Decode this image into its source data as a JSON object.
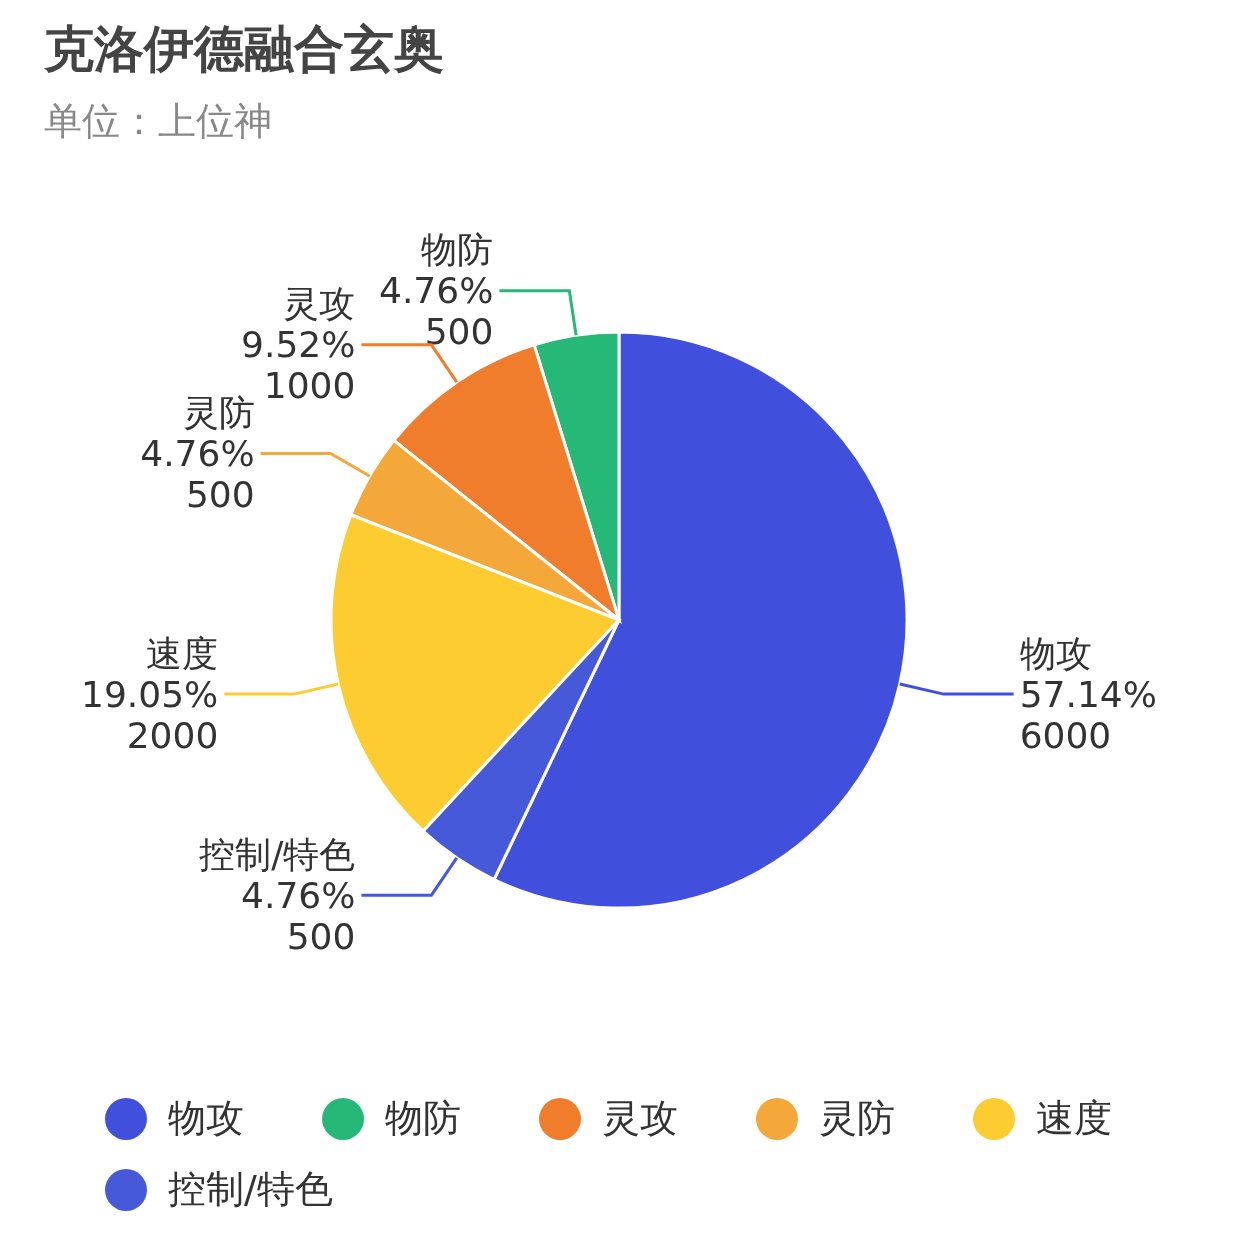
{
  "chart_data": {
    "type": "pie",
    "title": "克洛伊德融合玄奥",
    "subtitle": "单位：上位神",
    "categories": [
      "物攻",
      "物防",
      "灵攻",
      "灵防",
      "速度",
      "控制/特色"
    ],
    "values": [
      6000,
      500,
      1000,
      500,
      2000,
      500
    ],
    "colors": [
      "#4050dc",
      "#26b877",
      "#ef7d2c",
      "#f4a83a",
      "#fdcc30",
      "#4659d8"
    ],
    "value_labels": [
      "57.14%\n6000",
      "4.76%\n500",
      "9.52%\n1000",
      "4.76%\n500",
      "19.05%\n2000",
      "4.76%\n500"
    ],
    "legend": "bottom"
  }
}
